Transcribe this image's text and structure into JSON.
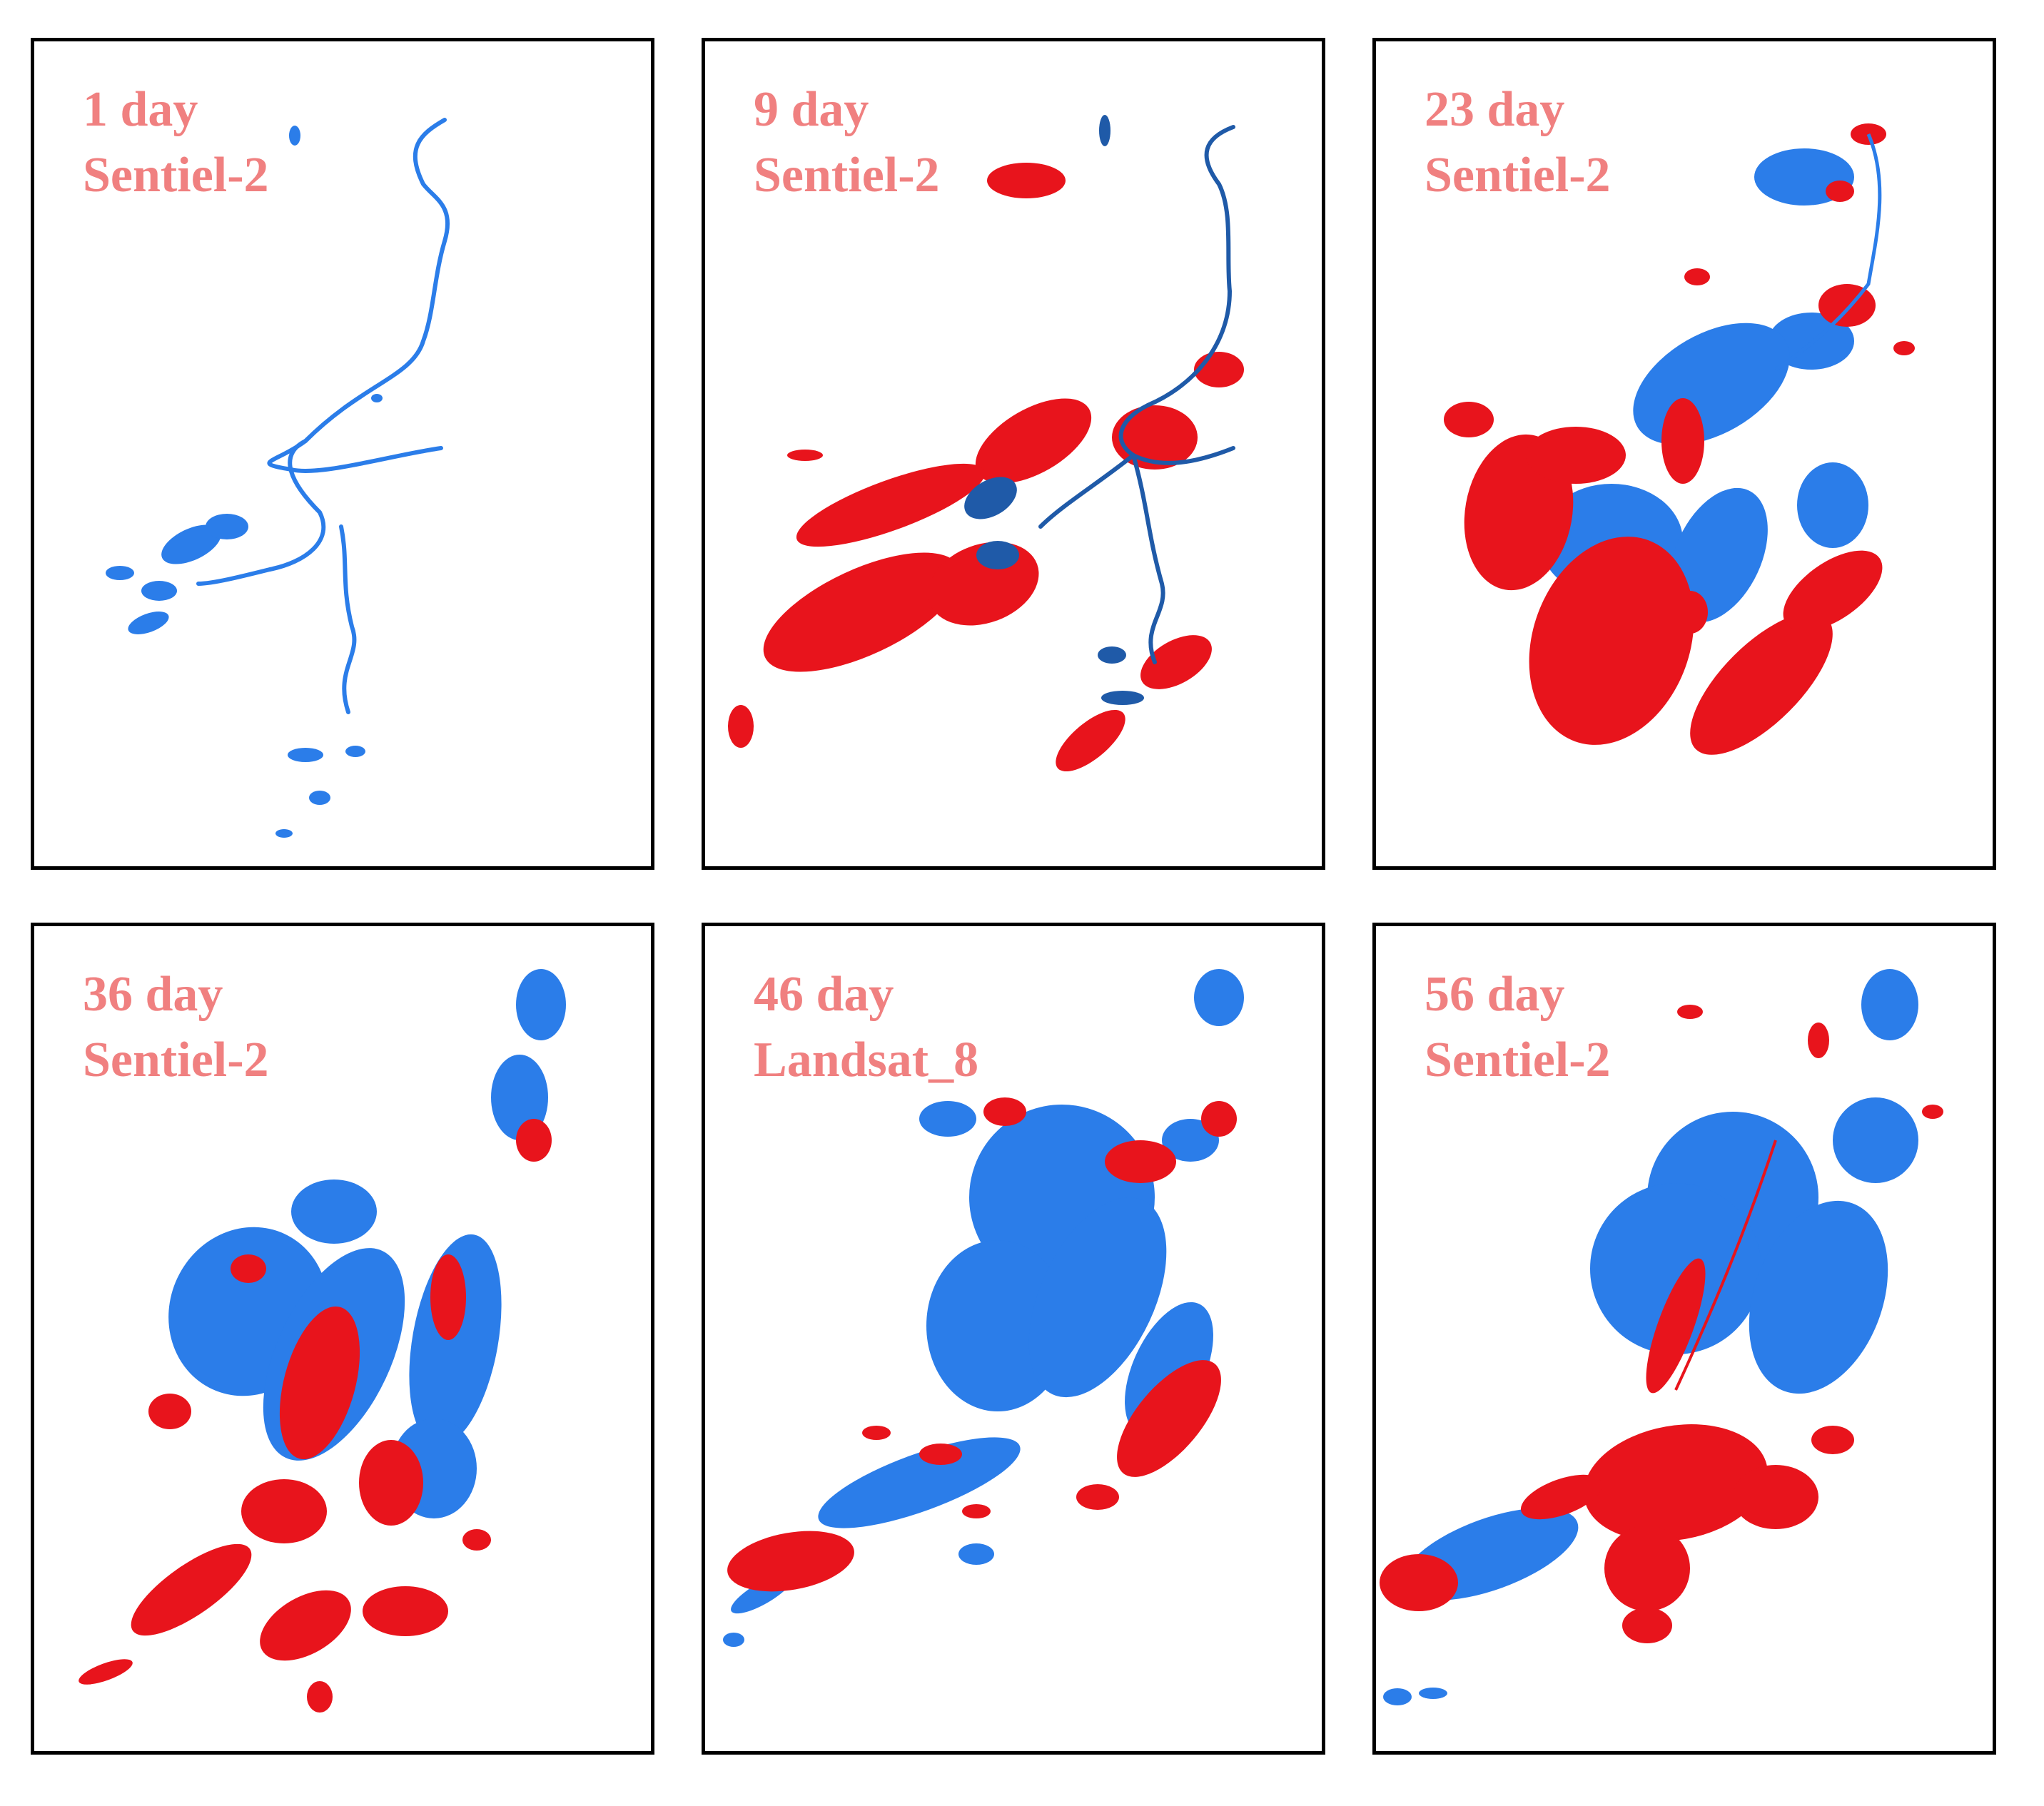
{
  "colors": {
    "red": "#e8141c",
    "blue": "#2b7de9",
    "label": "#f08080"
  },
  "panels": [
    {
      "day": "1 day",
      "sensor": "Sentiel-2"
    },
    {
      "day": "9 day",
      "sensor": "Sentiel-2"
    },
    {
      "day": "23 day",
      "sensor": "Sentiel-2"
    },
    {
      "day": "36 day",
      "sensor": "Sentiel-2"
    },
    {
      "day": "46 day",
      "sensor": "Landsat_8"
    },
    {
      "day": "56 day",
      "sensor": "Sentiel-2"
    }
  ]
}
